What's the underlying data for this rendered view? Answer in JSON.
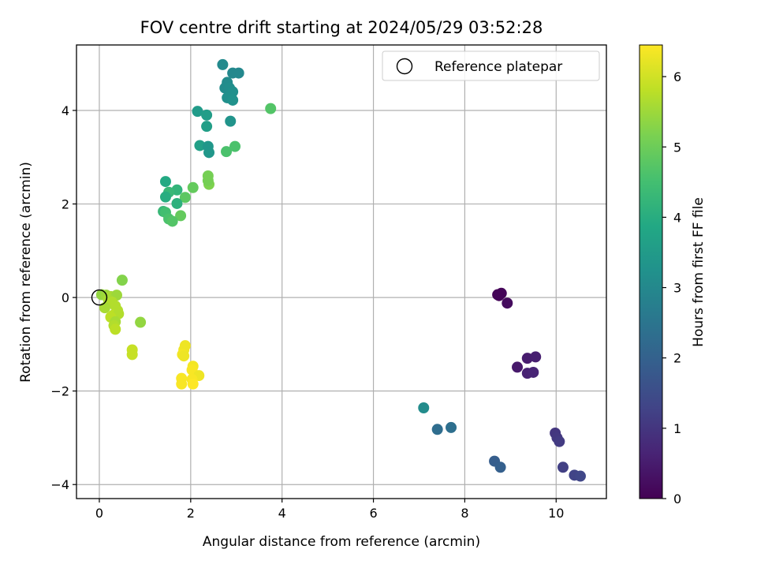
{
  "chart_data": {
    "type": "scatter",
    "title": "FOV centre drift starting at 2024/05/29 03:52:28",
    "xlabel": "Angular distance from reference (arcmin)",
    "ylabel": "Rotation from reference (arcmin)",
    "xlim": [
      -0.5,
      11.1
    ],
    "ylim": [
      -4.3,
      5.4
    ],
    "xticks": [
      0,
      2,
      4,
      6,
      8,
      10
    ],
    "yticks": [
      -4,
      -2,
      0,
      2,
      4
    ],
    "grid": true,
    "legend": {
      "placement": "top-right",
      "entries": [
        "Reference platepar"
      ]
    },
    "reference_point": {
      "x": 0,
      "y": 0
    },
    "colorbar": {
      "label": "Hours from first FF file",
      "range": [
        0,
        6.45
      ],
      "ticks": [
        0,
        1,
        2,
        3,
        4,
        5,
        6
      ],
      "colormap": "viridis"
    },
    "points": [
      {
        "x": 8.72,
        "y": 0.06,
        "c": 0.05
      },
      {
        "x": 8.8,
        "y": 0.09,
        "c": 0.1
      },
      {
        "x": 8.75,
        "y": 0.04,
        "c": 0.08
      },
      {
        "x": 8.93,
        "y": -0.12,
        "c": 0.2
      },
      {
        "x": 9.15,
        "y": -1.49,
        "c": 0.45
      },
      {
        "x": 9.37,
        "y": -1.3,
        "c": 0.5
      },
      {
        "x": 9.55,
        "y": -1.27,
        "c": 0.55
      },
      {
        "x": 9.37,
        "y": -1.62,
        "c": 0.6
      },
      {
        "x": 9.5,
        "y": -1.6,
        "c": 0.65
      },
      {
        "x": 9.98,
        "y": -2.9,
        "c": 1.0
      },
      {
        "x": 10.02,
        "y": -3.0,
        "c": 1.05
      },
      {
        "x": 10.07,
        "y": -3.08,
        "c": 1.1
      },
      {
        "x": 10.15,
        "y": -3.63,
        "c": 1.2
      },
      {
        "x": 10.4,
        "y": -3.8,
        "c": 1.3
      },
      {
        "x": 10.53,
        "y": -3.82,
        "c": 1.35
      },
      {
        "x": 8.65,
        "y": -3.5,
        "c": 1.9
      },
      {
        "x": 8.78,
        "y": -3.63,
        "c": 1.95
      },
      {
        "x": 7.4,
        "y": -2.82,
        "c": 2.3
      },
      {
        "x": 7.7,
        "y": -2.78,
        "c": 2.35
      },
      {
        "x": 7.1,
        "y": -2.36,
        "c": 3.1
      },
      {
        "x": 2.7,
        "y": 4.98,
        "c": 3.05
      },
      {
        "x": 2.92,
        "y": 4.8,
        "c": 3.0
      },
      {
        "x": 3.05,
        "y": 4.8,
        "c": 3.0
      },
      {
        "x": 2.8,
        "y": 4.6,
        "c": 3.1
      },
      {
        "x": 2.75,
        "y": 4.48,
        "c": 3.1
      },
      {
        "x": 2.85,
        "y": 4.48,
        "c": 3.15
      },
      {
        "x": 2.92,
        "y": 4.4,
        "c": 3.2
      },
      {
        "x": 2.8,
        "y": 4.27,
        "c": 3.2
      },
      {
        "x": 2.92,
        "y": 4.22,
        "c": 3.25
      },
      {
        "x": 2.15,
        "y": 3.98,
        "c": 3.5
      },
      {
        "x": 2.35,
        "y": 3.9,
        "c": 3.55
      },
      {
        "x": 2.87,
        "y": 3.77,
        "c": 3.3
      },
      {
        "x": 2.35,
        "y": 3.66,
        "c": 3.6
      },
      {
        "x": 2.2,
        "y": 3.25,
        "c": 3.65
      },
      {
        "x": 2.38,
        "y": 3.23,
        "c": 3.4
      },
      {
        "x": 2.4,
        "y": 3.1,
        "c": 3.4
      },
      {
        "x": 2.78,
        "y": 3.12,
        "c": 4.6
      },
      {
        "x": 2.97,
        "y": 3.23,
        "c": 4.6
      },
      {
        "x": 3.75,
        "y": 4.04,
        "c": 4.7
      },
      {
        "x": 1.45,
        "y": 2.48,
        "c": 3.9
      },
      {
        "x": 2.38,
        "y": 2.6,
        "c": 5.1
      },
      {
        "x": 2.4,
        "y": 2.42,
        "c": 5.2
      },
      {
        "x": 2.38,
        "y": 2.5,
        "c": 5.1
      },
      {
        "x": 1.7,
        "y": 2.3,
        "c": 4.2
      },
      {
        "x": 2.05,
        "y": 2.35,
        "c": 4.9
      },
      {
        "x": 1.52,
        "y": 2.25,
        "c": 4.3
      },
      {
        "x": 1.45,
        "y": 2.15,
        "c": 4.0
      },
      {
        "x": 1.88,
        "y": 2.14,
        "c": 4.8
      },
      {
        "x": 1.7,
        "y": 2.01,
        "c": 4.1
      },
      {
        "x": 1.4,
        "y": 1.84,
        "c": 4.3
      },
      {
        "x": 1.45,
        "y": 1.82,
        "c": 4.5
      },
      {
        "x": 1.78,
        "y": 1.75,
        "c": 4.9
      },
      {
        "x": 1.52,
        "y": 1.68,
        "c": 4.6
      },
      {
        "x": 1.6,
        "y": 1.63,
        "c": 4.7
      },
      {
        "x": 0.5,
        "y": 0.37,
        "c": 5.25
      },
      {
        "x": 0.05,
        "y": 0.06,
        "c": 5.4
      },
      {
        "x": 0.15,
        "y": 0.05,
        "c": 5.5
      },
      {
        "x": 0.25,
        "y": 0.02,
        "c": 5.6
      },
      {
        "x": 0.38,
        "y": 0.05,
        "c": 5.5
      },
      {
        "x": 0.2,
        "y": -0.05,
        "c": 5.6
      },
      {
        "x": 0.28,
        "y": -0.1,
        "c": 5.7
      },
      {
        "x": 0.35,
        "y": -0.18,
        "c": 5.7
      },
      {
        "x": 0.12,
        "y": -0.22,
        "c": 5.6
      },
      {
        "x": 0.4,
        "y": -0.28,
        "c": 5.7
      },
      {
        "x": 0.3,
        "y": -0.38,
        "c": 5.8
      },
      {
        "x": 0.42,
        "y": -0.35,
        "c": 5.7
      },
      {
        "x": 0.25,
        "y": -0.42,
        "c": 5.8
      },
      {
        "x": 0.35,
        "y": -0.52,
        "c": 5.6
      },
      {
        "x": 0.32,
        "y": -0.6,
        "c": 5.7
      },
      {
        "x": 0.35,
        "y": -0.68,
        "c": 5.8
      },
      {
        "x": 0.9,
        "y": -0.53,
        "c": 5.4
      },
      {
        "x": 0.72,
        "y": -1.12,
        "c": 5.9
      },
      {
        "x": 0.72,
        "y": -1.22,
        "c": 5.9
      },
      {
        "x": 1.88,
        "y": -1.03,
        "c": 6.3
      },
      {
        "x": 1.85,
        "y": -1.12,
        "c": 6.3
      },
      {
        "x": 1.82,
        "y": -1.22,
        "c": 6.35
      },
      {
        "x": 1.85,
        "y": -1.25,
        "c": 6.3
      },
      {
        "x": 2.05,
        "y": -1.47,
        "c": 6.35
      },
      {
        "x": 2.03,
        "y": -1.55,
        "c": 6.4
      },
      {
        "x": 2.18,
        "y": -1.67,
        "c": 6.3
      },
      {
        "x": 1.8,
        "y": -1.73,
        "c": 6.4
      },
      {
        "x": 2.03,
        "y": -1.75,
        "c": 6.4
      },
      {
        "x": 1.8,
        "y": -1.85,
        "c": 6.4
      },
      {
        "x": 2.05,
        "y": -1.85,
        "c": 6.45
      }
    ]
  }
}
